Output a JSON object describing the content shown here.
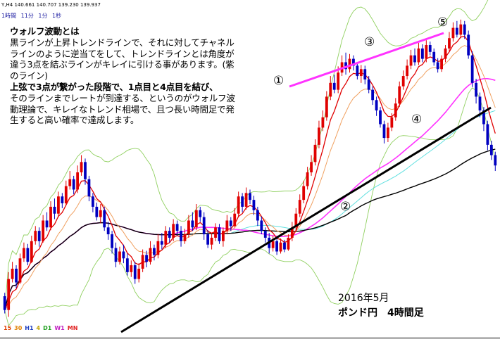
{
  "header": {
    "symbol": "Y,H4  140.661 140.707 139.230 139.937",
    "timeframes": [
      "1時間",
      "11分",
      "1分",
      "1秒"
    ]
  },
  "note": {
    "title": "ウォルフ波動とは",
    "line1": "黒ラインが上昇トレンドラインで、それに対してチャネルラインのように逆当てをして、トレンドラインとは角度が違う3点を結ぶラインがキレイに引ける事があります。(紫のライン)",
    "line2_bold": "上弦で3点が繋がった段階で、1点目と4点目を結び、",
    "line3": "そのラインまでレートが到達する、というのがウォルフ波動理論で、キレイなトレンド相場で、且つ長い時間足で発生すると高い確率で達成します。"
  },
  "wave_labels": [
    "①",
    "②",
    "③",
    "④",
    "⑤"
  ],
  "caption": {
    "line1": "2016年5月",
    "line2": "ポンド円　4時間足"
  },
  "bottom_timeframes": [
    {
      "label": "15",
      "color": "#e04000"
    },
    {
      "label": "30",
      "color": "#e08000"
    },
    {
      "label": "H1",
      "color": "#2040c0"
    },
    {
      "label": "4",
      "color": "#c0a000"
    },
    {
      "label": "D1",
      "color": "#20a020"
    },
    {
      "label": "W1",
      "color": "#c020c0"
    },
    {
      "label": "MN",
      "color": "#e02020"
    }
  ],
  "colors": {
    "bull_candle": "#e00000",
    "bear_candle": "#0000c0",
    "wolfe_line": "#ff33ff",
    "trend_line": "#000000",
    "ema_fast": "#e00000",
    "ema_mid": "#f0a060",
    "bollinger": "#90d060",
    "ma_cyan": "#60e0e0",
    "ma_magenta": "#ff33ff",
    "ma_long": "#000000"
  },
  "chart_data": {
    "type": "candlestick",
    "title": "ポンド円　4時間足",
    "period": "2016年5月",
    "candles": [
      [
        250,
        230,
        255,
        225
      ],
      [
        230,
        275,
        285,
        220
      ],
      [
        275,
        290,
        300,
        270
      ],
      [
        290,
        270,
        295,
        262
      ],
      [
        270,
        305,
        312,
        268
      ],
      [
        305,
        320,
        328,
        300
      ],
      [
        320,
        300,
        326,
        295
      ],
      [
        300,
        330,
        338,
        298
      ],
      [
        330,
        345,
        352,
        325
      ],
      [
        345,
        330,
        350,
        322
      ],
      [
        330,
        360,
        368,
        328
      ],
      [
        360,
        350,
        372,
        345
      ],
      [
        350,
        380,
        388,
        346
      ],
      [
        380,
        370,
        392,
        362
      ],
      [
        370,
        395,
        402,
        365
      ],
      [
        395,
        385,
        400,
        378
      ],
      [
        385,
        410,
        418,
        382
      ],
      [
        410,
        420,
        432,
        405
      ],
      [
        420,
        405,
        425,
        398
      ],
      [
        405,
        430,
        440,
        400
      ],
      [
        430,
        445,
        455,
        425
      ],
      [
        445,
        420,
        450,
        412
      ],
      [
        420,
        395,
        425,
        388
      ],
      [
        395,
        380,
        400,
        372
      ],
      [
        380,
        365,
        386,
        360
      ],
      [
        365,
        375,
        384,
        356
      ],
      [
        375,
        350,
        380,
        345
      ],
      [
        350,
        340,
        358,
        332
      ],
      [
        340,
        320,
        345,
        312
      ],
      [
        320,
        300,
        328,
        292
      ],
      [
        300,
        315,
        322,
        296
      ],
      [
        315,
        305,
        325,
        298
      ],
      [
        305,
        285,
        312,
        280
      ],
      [
        285,
        295,
        302,
        278
      ],
      [
        295,
        275,
        300,
        268
      ],
      [
        275,
        290,
        298,
        270
      ],
      [
        290,
        310,
        318,
        285
      ],
      [
        310,
        300,
        316,
        292
      ],
      [
        300,
        320,
        330,
        296
      ],
      [
        320,
        310,
        325,
        302
      ],
      [
        310,
        330,
        340,
        305
      ],
      [
        330,
        325,
        342,
        318
      ],
      [
        325,
        345,
        352,
        320
      ],
      [
        345,
        335,
        350,
        328
      ],
      [
        335,
        355,
        362,
        330
      ],
      [
        355,
        345,
        360,
        338
      ],
      [
        345,
        330,
        352,
        322
      ],
      [
        330,
        340,
        348,
        326
      ],
      [
        340,
        360,
        368,
        335
      ],
      [
        360,
        350,
        372,
        345
      ],
      [
        350,
        375,
        384,
        346
      ],
      [
        375,
        365,
        380,
        358
      ],
      [
        365,
        340,
        372,
        332
      ],
      [
        340,
        325,
        346,
        320
      ],
      [
        325,
        335,
        342,
        318
      ],
      [
        335,
        350,
        356,
        330
      ],
      [
        350,
        330,
        355,
        326
      ],
      [
        330,
        345,
        350,
        322
      ],
      [
        345,
        360,
        368,
        340
      ],
      [
        360,
        352,
        365,
        345
      ],
      [
        352,
        370,
        378,
        350
      ],
      [
        370,
        395,
        402,
        365
      ],
      [
        395,
        380,
        400,
        372
      ],
      [
        380,
        400,
        408,
        376
      ],
      [
        400,
        390,
        405,
        384
      ],
      [
        390,
        375,
        396,
        368
      ],
      [
        375,
        360,
        380,
        352
      ],
      [
        360,
        345,
        366,
        340
      ],
      [
        345,
        335,
        350,
        328
      ],
      [
        335,
        320,
        342,
        312
      ],
      [
        320,
        330,
        338,
        315
      ],
      [
        330,
        315,
        335,
        310
      ],
      [
        315,
        328,
        334,
        312
      ],
      [
        328,
        318,
        332,
        314
      ],
      [
        318,
        335,
        340,
        316
      ],
      [
        335,
        350,
        358,
        330
      ],
      [
        350,
        370,
        378,
        345
      ],
      [
        370,
        390,
        398,
        365
      ],
      [
        390,
        410,
        418,
        385
      ],
      [
        410,
        430,
        438,
        405
      ],
      [
        430,
        445,
        455,
        425
      ],
      [
        445,
        470,
        478,
        440
      ],
      [
        470,
        495,
        505,
        465
      ],
      [
        495,
        510,
        520,
        490
      ],
      [
        510,
        540,
        548,
        505
      ],
      [
        540,
        560,
        570,
        535
      ],
      [
        560,
        550,
        572,
        545
      ],
      [
        550,
        575,
        584,
        545
      ],
      [
        575,
        590,
        600,
        570
      ],
      [
        590,
        580,
        604,
        572
      ],
      [
        580,
        595,
        602,
        575
      ],
      [
        595,
        585,
        600,
        578
      ],
      [
        585,
        570,
        590,
        565
      ],
      [
        570,
        580,
        586,
        560
      ],
      [
        580,
        565,
        585,
        558
      ],
      [
        565,
        550,
        570,
        545
      ],
      [
        550,
        535,
        555,
        528
      ],
      [
        535,
        520,
        540,
        512
      ],
      [
        520,
        500,
        525,
        495
      ],
      [
        500,
        480,
        505,
        472
      ],
      [
        480,
        495,
        502,
        474
      ],
      [
        495,
        510,
        516,
        490
      ],
      [
        510,
        530,
        538,
        505
      ],
      [
        530,
        555,
        562,
        525
      ],
      [
        555,
        570,
        578,
        550
      ],
      [
        570,
        585,
        594,
        565
      ],
      [
        585,
        600,
        608,
        580
      ],
      [
        600,
        590,
        610,
        585
      ],
      [
        590,
        610,
        618,
        586
      ],
      [
        610,
        595,
        616,
        590
      ],
      [
        595,
        615,
        622,
        590
      ],
      [
        615,
        605,
        620,
        600
      ],
      [
        605,
        590,
        610,
        585
      ],
      [
        590,
        580,
        596,
        575
      ],
      [
        580,
        595,
        600,
        576
      ],
      [
        595,
        610,
        615,
        590
      ],
      [
        610,
        625,
        634,
        605
      ],
      [
        625,
        640,
        648,
        620
      ],
      [
        640,
        630,
        650,
        626
      ],
      [
        630,
        645,
        652,
        625
      ],
      [
        645,
        630,
        650,
        624
      ],
      [
        630,
        600,
        636,
        595
      ],
      [
        600,
        560,
        606,
        554
      ],
      [
        560,
        540,
        566,
        530
      ],
      [
        540,
        520,
        546,
        510
      ],
      [
        520,
        500,
        525,
        490
      ],
      [
        500,
        470,
        505,
        462
      ],
      [
        470,
        455,
        476,
        448
      ],
      [
        455,
        440,
        460,
        432
      ]
    ],
    "wave_points": {
      "1": "first peak",
      "2": "trough on trendline",
      "3": "second peak",
      "4": "higher low",
      "5": "final peak"
    }
  }
}
